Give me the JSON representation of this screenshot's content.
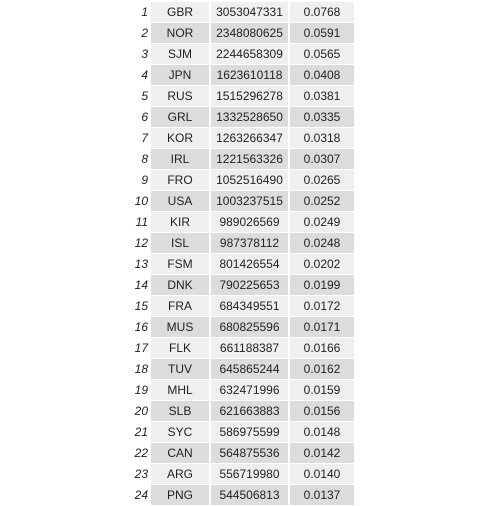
{
  "rows": [
    {
      "rank": "1",
      "code": "GBR",
      "value": "3053047331",
      "share": "0.0768"
    },
    {
      "rank": "2",
      "code": "NOR",
      "value": "2348080625",
      "share": "0.0591"
    },
    {
      "rank": "3",
      "code": "SJM",
      "value": "2244658309",
      "share": "0.0565"
    },
    {
      "rank": "4",
      "code": "JPN",
      "value": "1623610118",
      "share": "0.0408"
    },
    {
      "rank": "5",
      "code": "RUS",
      "value": "1515296278",
      "share": "0.0381"
    },
    {
      "rank": "6",
      "code": "GRL",
      "value": "1332528650",
      "share": "0.0335"
    },
    {
      "rank": "7",
      "code": "KOR",
      "value": "1263266347",
      "share": "0.0318"
    },
    {
      "rank": "8",
      "code": "IRL",
      "value": "1221563326",
      "share": "0.0307"
    },
    {
      "rank": "9",
      "code": "FRO",
      "value": "1052516490",
      "share": "0.0265"
    },
    {
      "rank": "10",
      "code": "USA",
      "value": "1003237515",
      "share": "0.0252"
    },
    {
      "rank": "11",
      "code": "KIR",
      "value": "989026569",
      "share": "0.0249"
    },
    {
      "rank": "12",
      "code": "ISL",
      "value": "987378112",
      "share": "0.0248"
    },
    {
      "rank": "13",
      "code": "FSM",
      "value": "801426554",
      "share": "0.0202"
    },
    {
      "rank": "14",
      "code": "DNK",
      "value": "790225653",
      "share": "0.0199"
    },
    {
      "rank": "15",
      "code": "FRA",
      "value": "684349551",
      "share": "0.0172"
    },
    {
      "rank": "16",
      "code": "MUS",
      "value": "680825596",
      "share": "0.0171"
    },
    {
      "rank": "17",
      "code": "FLK",
      "value": "661188387",
      "share": "0.0166"
    },
    {
      "rank": "18",
      "code": "TUV",
      "value": "645865244",
      "share": "0.0162"
    },
    {
      "rank": "19",
      "code": "MHL",
      "value": "632471996",
      "share": "0.0159"
    },
    {
      "rank": "20",
      "code": "SLB",
      "value": "621663883",
      "share": "0.0156"
    },
    {
      "rank": "21",
      "code": "SYC",
      "value": "586975599",
      "share": "0.0148"
    },
    {
      "rank": "22",
      "code": "CAN",
      "value": "564875536",
      "share": "0.0142"
    },
    {
      "rank": "23",
      "code": "ARG",
      "value": "556719980",
      "share": "0.0140"
    },
    {
      "rank": "24",
      "code": "PNG",
      "value": "544506813",
      "share": "0.0137"
    }
  ]
}
